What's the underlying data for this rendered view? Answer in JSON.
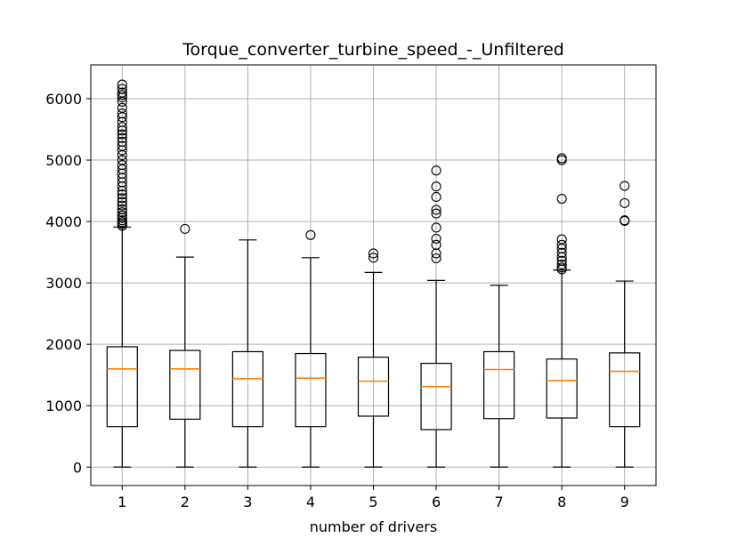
{
  "chart_data": {
    "type": "box",
    "title": "Torque_converter_turbine_speed_-_Unfiltered",
    "xlabel": "number of drivers",
    "ylabel": "",
    "categories": [
      "1",
      "2",
      "3",
      "4",
      "5",
      "6",
      "7",
      "8",
      "9"
    ],
    "yticks": [
      "0",
      "1000",
      "2000",
      "3000",
      "4000",
      "5000",
      "6000"
    ],
    "ylim": [
      -300,
      6550
    ],
    "grid": true,
    "colors": {
      "box": "#000000",
      "median": "#ff7f0e",
      "grid": "#b0b0b0"
    },
    "boxes": [
      {
        "category": "1",
        "whisker_low": 0,
        "q1": 660,
        "median": 1600,
        "q3": 1960,
        "whisker_high": 3910,
        "outliers": [
          3930,
          3960,
          3990,
          4020,
          4060,
          4100,
          4150,
          4200,
          4260,
          4320,
          4380,
          4440,
          4500,
          4570,
          4640,
          4710,
          4780,
          4850,
          4920,
          5000,
          5080,
          5160,
          5230,
          5300,
          5360,
          5420,
          5480,
          5540,
          5620,
          5700,
          5760,
          5850,
          5950,
          6020,
          6060,
          6100,
          6160,
          6230
        ]
      },
      {
        "category": "2",
        "whisker_low": 0,
        "q1": 780,
        "median": 1600,
        "q3": 1900,
        "whisker_high": 3420,
        "outliers": [
          3880
        ]
      },
      {
        "category": "3",
        "whisker_low": 0,
        "q1": 660,
        "median": 1440,
        "q3": 1880,
        "whisker_high": 3700,
        "outliers": []
      },
      {
        "category": "4",
        "whisker_low": 0,
        "q1": 660,
        "median": 1450,
        "q3": 1850,
        "whisker_high": 3410,
        "outliers": [
          3780
        ]
      },
      {
        "category": "5",
        "whisker_low": 0,
        "q1": 830,
        "median": 1400,
        "q3": 1790,
        "whisker_high": 3170,
        "outliers": [
          3410,
          3480
        ]
      },
      {
        "category": "6",
        "whisker_low": 0,
        "q1": 610,
        "median": 1310,
        "q3": 1690,
        "whisker_high": 3040,
        "outliers": [
          3400,
          3480,
          3620,
          3720,
          3900,
          4130,
          4190,
          4400,
          4570,
          4830
        ]
      },
      {
        "category": "7",
        "whisker_low": 0,
        "q1": 790,
        "median": 1590,
        "q3": 1880,
        "whisker_high": 2960,
        "outliers": []
      },
      {
        "category": "8",
        "whisker_low": 0,
        "q1": 800,
        "median": 1410,
        "q3": 1760,
        "whisker_high": 3210,
        "outliers": [
          3220,
          3250,
          3300,
          3360,
          3420,
          3490,
          3560,
          3620,
          3710,
          4370,
          5000,
          5030
        ]
      },
      {
        "category": "9",
        "whisker_low": 0,
        "q1": 660,
        "median": 1560,
        "q3": 1860,
        "whisker_high": 3030,
        "outliers": [
          4010,
          4020,
          4300,
          4580
        ]
      }
    ]
  }
}
